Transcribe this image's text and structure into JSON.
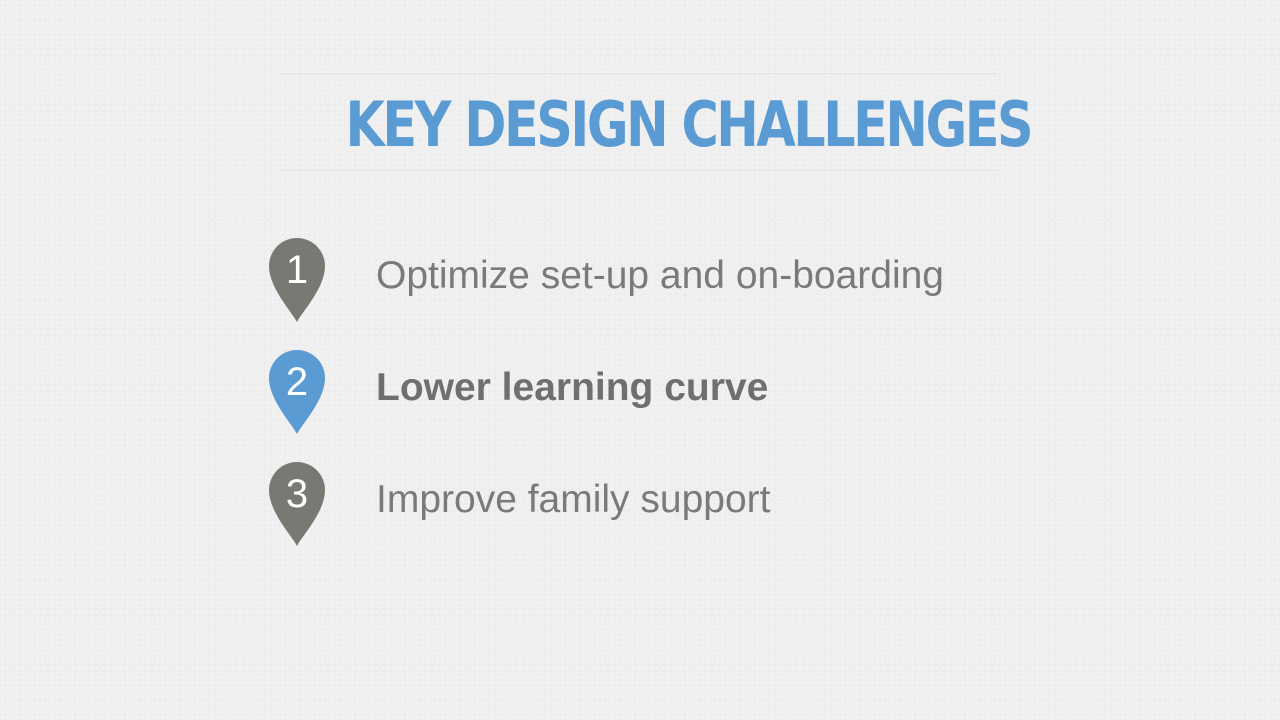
{
  "slide": {
    "title": "Key Design Challenges",
    "items": [
      {
        "number": "1",
        "label": "Optimize set-up and on-boarding",
        "active": false
      },
      {
        "number": "2",
        "label": "Lower learning curve",
        "active": true
      },
      {
        "number": "3",
        "label": "Improve family support",
        "active": false
      }
    ]
  },
  "colors": {
    "background": "#efefef",
    "title": "#5a9bd3",
    "pin_default": "#7a7872",
    "pin_active": "#5a9bd3",
    "text": "#7a7a7a"
  },
  "icons": {
    "pin": "map-pin-icon"
  }
}
